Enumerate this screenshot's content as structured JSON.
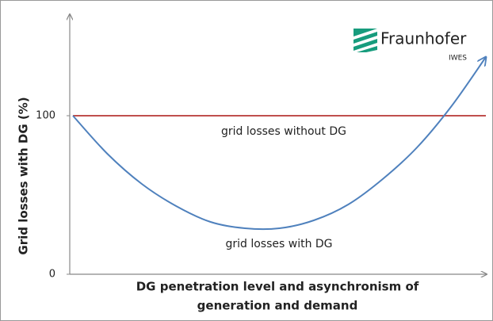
{
  "chart_data": {
    "type": "line",
    "y_label": "Grid losses with DG  (%)",
    "x_label": [
      "DG penetration level and asynchronism of",
      "generation and demand"
    ],
    "logo": {
      "name": "Fraunhofer",
      "unit": "IWES"
    },
    "categories": [
      null,
      null,
      null,
      null,
      null,
      null,
      null,
      null,
      null,
      null,
      null,
      null,
      null
    ],
    "series": [
      {
        "name": "grid losses without DG",
        "color": "#c0504d",
        "values": [
          100,
          100,
          100,
          100,
          100,
          100,
          100,
          100,
          100,
          100,
          100,
          100,
          100
        ]
      },
      {
        "name": "grid losses with DG",
        "color": "#4f81bd",
        "values": [
          100,
          76,
          57,
          43,
          33,
          29,
          29,
          34,
          44,
          60,
          80,
          106,
          137
        ]
      }
    ],
    "ylim": [
      0,
      163
    ],
    "yticks": [
      0,
      100
    ],
    "grid": false
  }
}
